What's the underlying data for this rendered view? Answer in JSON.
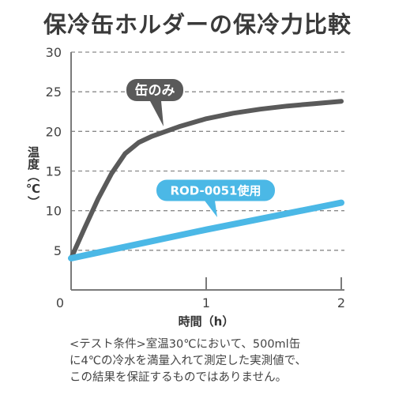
{
  "title": "保冷缶ホルダーの保冷力比較",
  "note": {
    "lines": [
      "<テスト条件>室温30℃において、500ml缶",
      "に4℃の冷水を満量入れて測定した実測値で、",
      "この結果を保証するものではありません。"
    ]
  },
  "chart_data": {
    "type": "line",
    "xlabel": "時間（h）",
    "ylabel": "温度（℃）",
    "xlim": [
      0,
      2
    ],
    "ylim": [
      0,
      30
    ],
    "x_ticks": [
      0,
      1,
      2
    ],
    "y_ticks": [
      5,
      10,
      15,
      20,
      25,
      30
    ],
    "grid": "horizontal dashed",
    "series": [
      {
        "name": "缶のみ",
        "color": "#5a5a5a",
        "x": [
          0,
          0.1,
          0.2,
          0.3,
          0.4,
          0.5,
          0.6,
          0.8,
          1.0,
          1.2,
          1.4,
          1.6,
          1.8,
          2.0
        ],
        "y": [
          4,
          7.8,
          11.5,
          14.7,
          17.2,
          18.6,
          19.4,
          20.6,
          21.6,
          22.3,
          22.8,
          23.2,
          23.5,
          23.8
        ]
      },
      {
        "name": "ROD-0051使用",
        "color": "#4bb8e6",
        "x": [
          0,
          0.5,
          1.0,
          1.5,
          2.0
        ],
        "y": [
          4,
          5.8,
          7.6,
          9.3,
          11
        ]
      }
    ]
  }
}
